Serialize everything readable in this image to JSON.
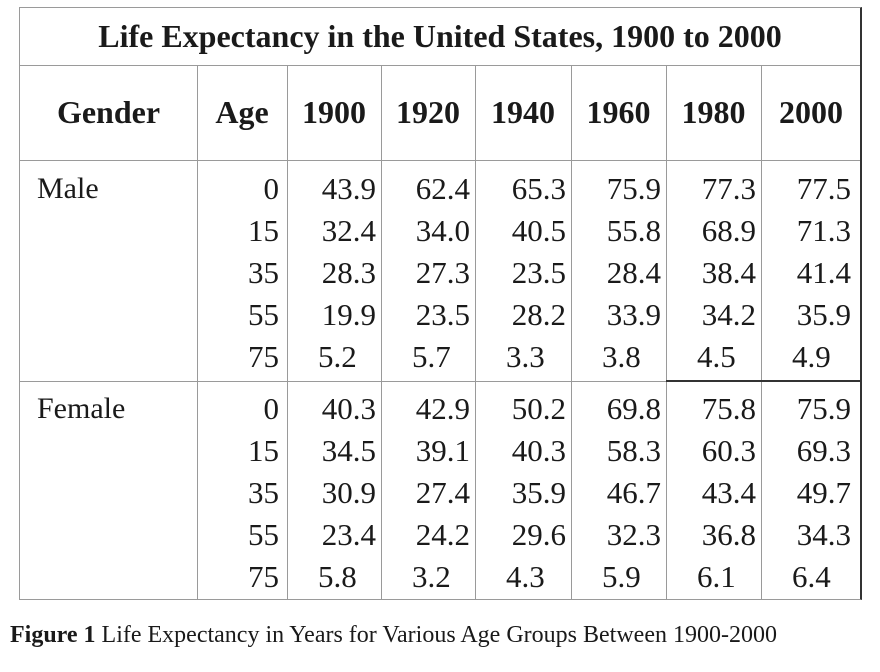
{
  "title": "Life Expectancy in the United States, 1900 to 2000",
  "headers": [
    "Gender",
    "Age",
    "1900",
    "1920",
    "1940",
    "1960",
    "1980",
    "2000"
  ],
  "groups": [
    {
      "gender": "Male",
      "rows": [
        {
          "age": "0",
          "values": [
            "43.9",
            "62.4",
            "65.3",
            "75.9",
            "77.3",
            "77.5"
          ]
        },
        {
          "age": "15",
          "values": [
            "32.4",
            "34.0",
            "40.5",
            "55.8",
            "68.9",
            "71.3"
          ]
        },
        {
          "age": "35",
          "values": [
            "28.3",
            "27.3",
            "23.5",
            "28.4",
            "38.4",
            "41.4"
          ]
        },
        {
          "age": "55",
          "values": [
            "19.9",
            "23.5",
            "28.2",
            "33.9",
            "34.2",
            "35.9"
          ]
        },
        {
          "age": "75",
          "values": [
            "5.2",
            "5.7",
            "3.3",
            "3.8",
            "4.5",
            "4.9"
          ]
        }
      ]
    },
    {
      "gender": "Female",
      "rows": [
        {
          "age": "0",
          "values": [
            "40.3",
            "42.9",
            "50.2",
            "69.8",
            "75.8",
            "75.9"
          ]
        },
        {
          "age": "15",
          "values": [
            "34.5",
            "39.1",
            "40.3",
            "58.3",
            "60.3",
            "69.3"
          ]
        },
        {
          "age": "35",
          "values": [
            "30.9",
            "27.4",
            "35.9",
            "46.7",
            "43.4",
            "49.7"
          ]
        },
        {
          "age": "55",
          "values": [
            "23.4",
            "24.2",
            "29.6",
            "32.3",
            "36.8",
            "34.3"
          ]
        },
        {
          "age": "75",
          "values": [
            "5.8",
            "3.2",
            "4.3",
            "5.9",
            "6.1",
            "6.4"
          ]
        }
      ]
    }
  ],
  "caption": {
    "label": "Figure 1",
    "text": " Life Expectancy in Years for Various Age Groups Between 1900-2000"
  }
}
